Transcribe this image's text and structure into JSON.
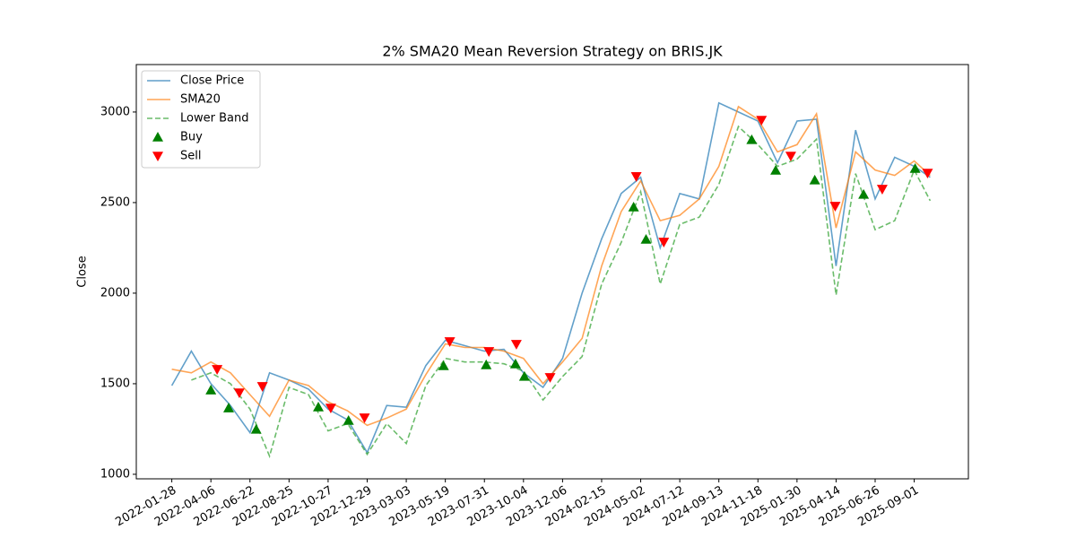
{
  "chart_data": {
    "type": "line",
    "title": "2% SMA20 Mean Reversion Strategy on BRIS.JK",
    "ylabel": "Close",
    "x": [
      0,
      22,
      44,
      66,
      88,
      110,
      132,
      154,
      176,
      198,
      220,
      242,
      264,
      286,
      308,
      330,
      352,
      374,
      396,
      418,
      440,
      462,
      484,
      506,
      528,
      550,
      572,
      594,
      616,
      638,
      660,
      682,
      704,
      726,
      748,
      770,
      792,
      814,
      836,
      854
    ],
    "xlim": [
      -40,
      897
    ],
    "xticks": [
      {
        "value": 0,
        "label": "2022-01-28"
      },
      {
        "value": 44,
        "label": "2022-04-06"
      },
      {
        "value": 88,
        "label": "2022-06-22"
      },
      {
        "value": 132,
        "label": "2022-08-25"
      },
      {
        "value": 176,
        "label": "2022-10-27"
      },
      {
        "value": 220,
        "label": "2022-12-29"
      },
      {
        "value": 264,
        "label": "2023-03-03"
      },
      {
        "value": 308,
        "label": "2023-05-19"
      },
      {
        "value": 352,
        "label": "2023-07-31"
      },
      {
        "value": 396,
        "label": "2023-10-04"
      },
      {
        "value": 440,
        "label": "2023-12-06"
      },
      {
        "value": 484,
        "label": "2024-02-15"
      },
      {
        "value": 528,
        "label": "2024-05-02"
      },
      {
        "value": 572,
        "label": "2024-07-12"
      },
      {
        "value": 616,
        "label": "2024-09-13"
      },
      {
        "value": 660,
        "label": "2024-11-18"
      },
      {
        "value": 704,
        "label": "2025-01-30"
      },
      {
        "value": 748,
        "label": "2025-04-14"
      },
      {
        "value": 792,
        "label": "2025-06-26"
      },
      {
        "value": 836,
        "label": "2025-09-01"
      }
    ],
    "ylim": [
      975,
      3262
    ],
    "yticks": [
      1000,
      1500,
      2000,
      2500,
      3000
    ],
    "grid": false,
    "legend": "upper left",
    "series": [
      {
        "name": "Close Price",
        "color": "#1f77b4",
        "style": "solid",
        "values": [
          1490,
          1680,
          1500,
          1380,
          1230,
          1560,
          1520,
          1470,
          1360,
          1300,
          1120,
          1380,
          1370,
          1600,
          1740,
          1710,
          1680,
          1690,
          1560,
          1480,
          1640,
          2000,
          2300,
          2550,
          2640,
          2250,
          2550,
          2520,
          3050,
          3000,
          2950,
          2720,
          2950,
          2960,
          2150,
          2900,
          2520,
          2750,
          2700,
          2640
        ]
      },
      {
        "name": "SMA20",
        "color": "#ff7f0e",
        "style": "solid",
        "values": [
          1580,
          1560,
          1620,
          1560,
          1440,
          1320,
          1520,
          1490,
          1400,
          1350,
          1270,
          1310,
          1360,
          1550,
          1720,
          1700,
          1700,
          1680,
          1640,
          1500,
          1620,
          1750,
          2150,
          2450,
          2620,
          2400,
          2430,
          2520,
          2700,
          3030,
          2960,
          2780,
          2820,
          2990,
          2360,
          2780,
          2680,
          2650,
          2730,
          2650
        ]
      },
      {
        "name": "Lower Band",
        "color": "#2ca02c",
        "style": "dashed",
        "values": [
          null,
          1520,
          1560,
          1500,
          1360,
          1100,
          1480,
          1440,
          1240,
          1280,
          1110,
          1280,
          1170,
          1490,
          1640,
          1620,
          1620,
          1610,
          1570,
          1410,
          1540,
          1650,
          2050,
          2280,
          2560,
          2050,
          2380,
          2420,
          2600,
          2920,
          2820,
          2700,
          2740,
          2850,
          1990,
          2660,
          2350,
          2400,
          2680,
          2510
        ]
      },
      {
        "name": "Buy",
        "color": "#008000",
        "marker": "up",
        "x": [
          44,
          64,
          95,
          165,
          199,
          306,
          354,
          387,
          397,
          520,
          534,
          653,
          680,
          724,
          779,
          837
        ],
        "values": [
          1465,
          1366,
          1248,
          1371,
          1297,
          1599,
          1604,
          1609,
          1540,
          2475,
          2297,
          2847,
          2678,
          2624,
          2545,
          2688
        ]
      },
      {
        "name": "Sell",
        "color": "#ff0000",
        "marker": "down",
        "x": [
          51,
          76,
          102,
          179,
          217,
          313,
          357,
          388,
          426,
          523,
          554,
          664,
          697,
          747,
          800,
          851
        ],
        "values": [
          1579,
          1450,
          1485,
          1366,
          1312,
          1733,
          1678,
          1718,
          1535,
          2644,
          2282,
          2955,
          2757,
          2480,
          2574,
          2663
        ]
      }
    ]
  }
}
